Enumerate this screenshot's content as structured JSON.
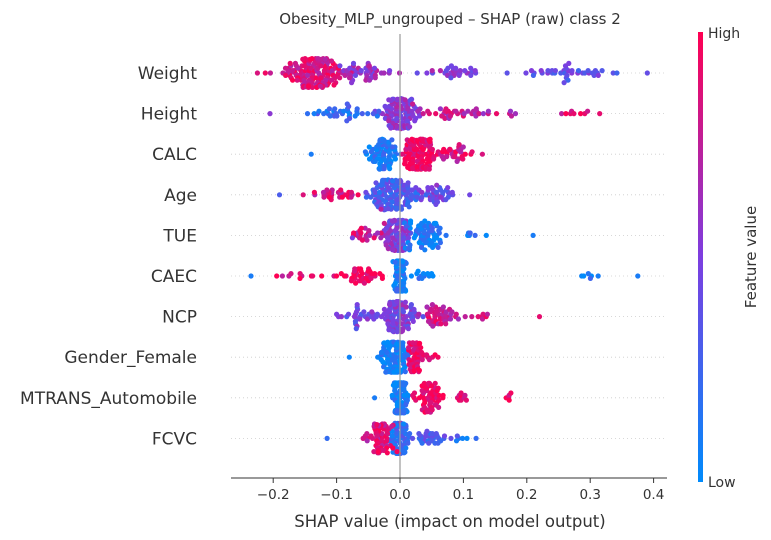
{
  "chart_data": {
    "type": "scatter",
    "subtype": "shap-beeswarm",
    "title": "Obesity_MLP_ungrouped – SHAP (raw) class 2",
    "xlabel": "SHAP value (impact on model output)",
    "ylabel": "",
    "xlim": [
      -0.265,
      0.405
    ],
    "x_ticks": [
      -0.2,
      -0.1,
      0.0,
      0.1,
      0.2,
      0.3,
      0.4
    ],
    "x_tick_labels": [
      "−0.2",
      "−0.1",
      "0.0",
      "0.1",
      "0.2",
      "0.3",
      "0.4"
    ],
    "grid": false,
    "colorbar": {
      "label": "Feature value",
      "high_label": "High",
      "low_label": "Low",
      "low_color": "#008bfb",
      "high_color": "#ff0052"
    },
    "features": [
      {
        "name": "Weight",
        "clusters": [
          {
            "center": -0.14,
            "spread": 0.055,
            "count": 140,
            "value": 0.85
          },
          {
            "center": -0.05,
            "spread": 0.04,
            "count": 45,
            "value": 0.6
          },
          {
            "center": 0.08,
            "spread": 0.06,
            "count": 30,
            "value": 0.55
          },
          {
            "center": 0.27,
            "spread": 0.07,
            "count": 40,
            "value": 0.4
          }
        ],
        "range": [
          -0.225,
          0.39
        ]
      },
      {
        "name": "Height",
        "clusters": [
          {
            "center": 0.0,
            "spread": 0.03,
            "count": 110,
            "value": 0.55
          },
          {
            "center": -0.09,
            "spread": 0.06,
            "count": 35,
            "value": 0.2
          },
          {
            "center": 0.1,
            "spread": 0.07,
            "count": 40,
            "value": 0.75
          },
          {
            "center": 0.27,
            "spread": 0.05,
            "count": 8,
            "value": 0.9
          }
        ],
        "range": [
          -0.205,
          0.315
        ]
      },
      {
        "name": "CALC",
        "clusters": [
          {
            "center": -0.03,
            "spread": 0.025,
            "count": 80,
            "value": 0.1
          },
          {
            "center": 0.03,
            "spread": 0.025,
            "count": 140,
            "value": 0.95
          },
          {
            "center": 0.085,
            "spread": 0.025,
            "count": 30,
            "value": 0.85
          }
        ],
        "range": [
          -0.14,
          0.13
        ]
      },
      {
        "name": "Age",
        "clusters": [
          {
            "center": -0.01,
            "spread": 0.035,
            "count": 130,
            "value": 0.3
          },
          {
            "center": -0.1,
            "spread": 0.05,
            "count": 30,
            "value": 0.85
          },
          {
            "center": 0.06,
            "spread": 0.03,
            "count": 40,
            "value": 0.45
          }
        ],
        "range": [
          -0.19,
          0.11
        ]
      },
      {
        "name": "TUE",
        "clusters": [
          {
            "center": -0.005,
            "spread": 0.02,
            "count": 110,
            "value": 0.5
          },
          {
            "center": 0.04,
            "spread": 0.035,
            "count": 70,
            "value": 0.1
          },
          {
            "center": -0.05,
            "spread": 0.03,
            "count": 25,
            "value": 0.8
          },
          {
            "center": 0.12,
            "spread": 0.015,
            "count": 6,
            "value": 0.1
          }
        ],
        "range": [
          -0.075,
          0.21
        ]
      },
      {
        "name": "CAEC",
        "clusters": [
          {
            "center": 0.0,
            "spread": 0.008,
            "count": 140,
            "value": 0.1
          },
          {
            "center": -0.06,
            "spread": 0.04,
            "count": 40,
            "value": 0.95
          },
          {
            "center": -0.16,
            "spread": 0.04,
            "count": 10,
            "value": 0.9
          },
          {
            "center": 0.04,
            "spread": 0.02,
            "count": 12,
            "value": 0.1
          },
          {
            "center": 0.31,
            "spread": 0.02,
            "count": 6,
            "value": 0.1
          }
        ],
        "range": [
          -0.235,
          0.375
        ]
      },
      {
        "name": "NCP",
        "clusters": [
          {
            "center": 0.0,
            "spread": 0.025,
            "count": 110,
            "value": 0.5
          },
          {
            "center": -0.06,
            "spread": 0.03,
            "count": 30,
            "value": 0.45
          },
          {
            "center": 0.06,
            "spread": 0.035,
            "count": 50,
            "value": 0.8
          },
          {
            "center": 0.13,
            "spread": 0.01,
            "count": 6,
            "value": 0.9
          }
        ],
        "range": [
          -0.1,
          0.22
        ]
      },
      {
        "name": "Gender_Female",
        "clusters": [
          {
            "center": -0.01,
            "spread": 0.02,
            "count": 150,
            "value": 0.05
          },
          {
            "center": 0.025,
            "spread": 0.012,
            "count": 50,
            "value": 0.95
          },
          {
            "center": 0.05,
            "spread": 0.01,
            "count": 5,
            "value": 0.95
          }
        ],
        "range": [
          -0.08,
          0.06
        ]
      },
      {
        "name": "MTRANS_Automobile",
        "clusters": [
          {
            "center": 0.0,
            "spread": 0.012,
            "count": 140,
            "value": 0.1
          },
          {
            "center": 0.045,
            "spread": 0.02,
            "count": 60,
            "value": 0.95
          },
          {
            "center": 0.1,
            "spread": 0.015,
            "count": 10,
            "value": 0.95
          },
          {
            "center": 0.17,
            "spread": 0.006,
            "count": 4,
            "value": 0.95
          }
        ],
        "range": [
          -0.04,
          0.175
        ]
      },
      {
        "name": "FCVC",
        "clusters": [
          {
            "center": 0.0,
            "spread": 0.015,
            "count": 110,
            "value": 0.2
          },
          {
            "center": -0.03,
            "spread": 0.025,
            "count": 60,
            "value": 0.85
          },
          {
            "center": 0.05,
            "spread": 0.025,
            "count": 30,
            "value": 0.3
          },
          {
            "center": 0.1,
            "spread": 0.012,
            "count": 5,
            "value": 0.2
          }
        ],
        "range": [
          -0.115,
          0.12
        ]
      }
    ]
  }
}
